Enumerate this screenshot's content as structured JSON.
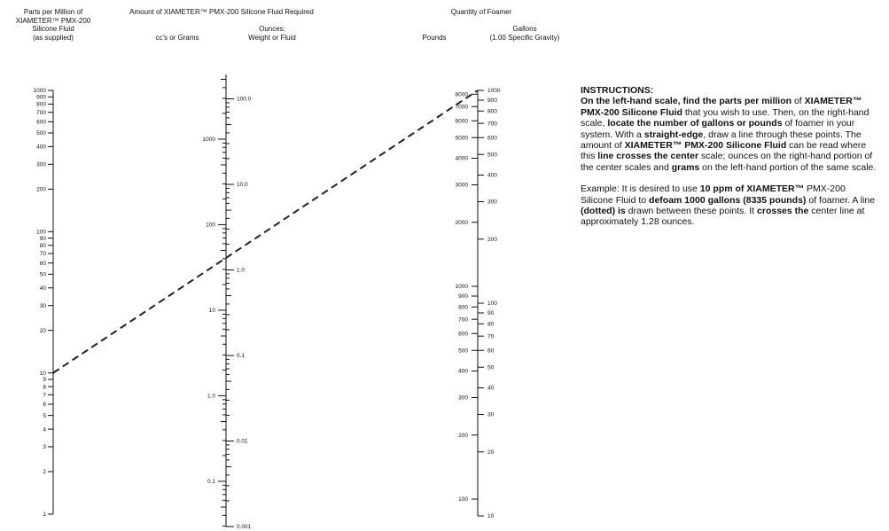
{
  "headers": {
    "ppm_line1": "Parts per Million of",
    "ppm_line2": "XIAMETER™ PMX-200",
    "ppm_line3": "Silicone Fluid",
    "ppm_line4": "(as supplied)",
    "amount_title": "Amount of XIAMETER™ PMX-200 Silicone Fluid Required",
    "grams_label": "cc's or Grams",
    "ounces_line1": "Ounces:",
    "ounces_line2": "Weight or Fluid",
    "quantity_title": "Quantity of Foamer",
    "pounds_label": "Pounds",
    "gallons_line1": "Gallons",
    "gallons_line2": "(1.00 Specific Gravity)"
  },
  "scales": {
    "ppm": {
      "ticks": [
        1,
        2,
        3,
        4,
        5,
        6,
        7,
        8,
        9,
        10,
        20,
        30,
        40,
        50,
        60,
        70,
        80,
        90,
        100,
        200,
        300,
        400,
        500,
        600,
        700,
        800,
        900,
        1000
      ],
      "labels": [
        "1",
        "2",
        "3",
        "4",
        "5",
        "6",
        "7",
        "8",
        "9",
        "10",
        "20",
        "30",
        "40",
        "50",
        "60",
        "70",
        "80",
        "90",
        "100",
        "200",
        "300",
        "400",
        "500",
        "600",
        "700",
        "800",
        "900",
        "1000"
      ]
    },
    "grams": {
      "labels": [
        "0.1",
        "1.0",
        "10",
        "100",
        "1000"
      ],
      "values": [
        0.1,
        1.0,
        10,
        100,
        1000
      ]
    },
    "ounces": {
      "labels": [
        "0.001",
        "0.01",
        "0.1",
        "1.0",
        "10.0",
        "100.0"
      ],
      "values": [
        0.001,
        0.01,
        0.1,
        1.0,
        10.0,
        100.0
      ]
    },
    "pounds": {
      "labels": [
        "100",
        "200",
        "300",
        "400",
        "500",
        "600",
        "700",
        "800",
        "900",
        "1000",
        "2000",
        "3000",
        "4000",
        "5000",
        "6000",
        "7000",
        "8000"
      ],
      "values": [
        100,
        200,
        300,
        400,
        500,
        600,
        700,
        800,
        900,
        1000,
        2000,
        3000,
        4000,
        5000,
        6000,
        7000,
        8000
      ]
    },
    "gallons": {
      "labels": [
        "10",
        "20",
        "30",
        "40",
        "50",
        "60",
        "70",
        "80",
        "90",
        "100",
        "200",
        "300",
        "400",
        "500",
        "600",
        "700",
        "800",
        "900",
        "1000"
      ],
      "values": [
        10,
        20,
        30,
        40,
        50,
        60,
        70,
        80,
        90,
        100,
        200,
        300,
        400,
        500,
        600,
        700,
        800,
        900,
        1000
      ]
    }
  },
  "example_line": {
    "from_ppm": 10,
    "to_gallons": 1000
  },
  "instructions": {
    "title": "INSTRUCTIONS:",
    "p1": [
      {
        "t": "On the left-hand scale, find the parts per million",
        "b": true
      },
      {
        "t": " of ",
        "b": false
      },
      {
        "t": "XIAMETER™ PMX-200 Silicone Fluid",
        "b": true
      },
      {
        "t": " that you wish to use. Then, on the right-hand scale, ",
        "b": false
      },
      {
        "t": "locate the number of gallons or pounds",
        "b": true
      },
      {
        "t": " of foamer in your system. With a ",
        "b": false
      },
      {
        "t": "straight-edge",
        "b": true
      },
      {
        "t": ", draw a line through these points. The amount of ",
        "b": false
      },
      {
        "t": "XIAMETER™ PMX-200 Silicone Fluid",
        "b": true
      },
      {
        "t": " can be read where this ",
        "b": false
      },
      {
        "t": "line crosses the center",
        "b": true
      },
      {
        "t": " scale; ounces on the right-hand portion of the center scales and ",
        "b": false
      },
      {
        "t": "grams",
        "b": true
      },
      {
        "t": " on the left-hand portion of the same scale.",
        "b": false
      }
    ],
    "p2": [
      {
        "t": "Example: It is desired to use ",
        "b": false
      },
      {
        "t": "10 ppm of XIAMETER™",
        "b": true
      },
      {
        "t": " PMX-200 Silicone Fluid to ",
        "b": false
      },
      {
        "t": "defoam 1000 gallons (8335 pounds)",
        "b": true
      },
      {
        "t": " of foamer. A line ",
        "b": false
      },
      {
        "t": "(dotted) is",
        "b": true
      },
      {
        "t": " drawn between these points. It ",
        "b": false
      },
      {
        "t": "crosses the",
        "b": true
      },
      {
        "t": " center line at approximately 1.28 ounces.",
        "b": false
      }
    ]
  }
}
